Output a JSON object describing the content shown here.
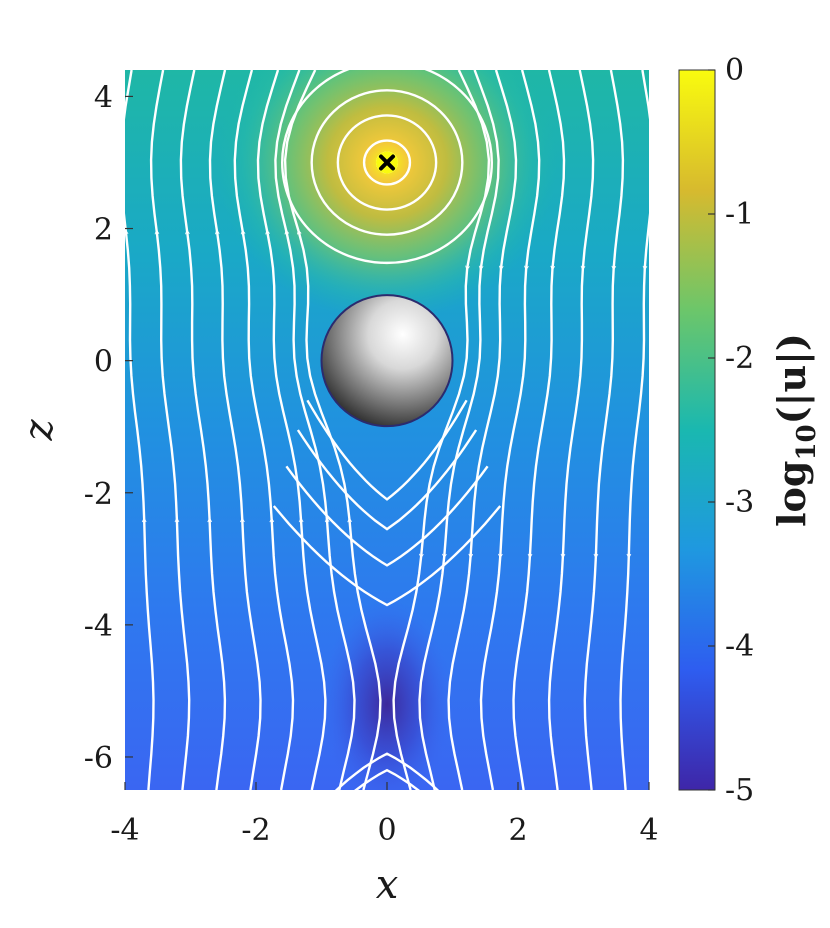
{
  "chart_data": {
    "type": "heatmap",
    "description_of_field": "streamlines over a log-scale magnitude field around a sphere",
    "xlabel": "x",
    "ylabel": "z",
    "xlim": [
      -4,
      4
    ],
    "ylim": [
      -6.5,
      4.4
    ],
    "xticks": [
      -4,
      -2,
      0,
      2,
      4
    ],
    "xtick_labels": [
      "-4",
      "-2",
      "0",
      "2",
      "4"
    ],
    "yticks": [
      4,
      2,
      0,
      -2,
      -4,
      -6
    ],
    "ytick_labels": [
      "4",
      "2",
      "0",
      "-2",
      "-4",
      "-6"
    ],
    "colorbar": {
      "label": "log10(|u|)",
      "label_parts": {
        "pre": "log",
        "sub": "10",
        "post": "(|u|)"
      },
      "range": [
        -5,
        0
      ],
      "ticks": [
        0,
        -1,
        -2,
        -3,
        -4,
        -5
      ],
      "tick_labels": [
        "0",
        "-1",
        "-2",
        "-3",
        "-4",
        "-5"
      ],
      "colormap": "parula",
      "colors": [
        "#3e26a8",
        "#2e5df0",
        "#1f98e0",
        "#1ab8b0",
        "#6cc66a",
        "#d7ba2e",
        "#f9fb0e"
      ]
    },
    "sphere": {
      "center": [
        0,
        0
      ],
      "radius": 1.0
    },
    "source_point": {
      "position": [
        0,
        3
      ],
      "marker": "x"
    },
    "stagnation_point": [
      0,
      -5.2
    ],
    "streamlines": {
      "color": "#ffffff",
      "style": "streamline-with-arrows"
    }
  }
}
